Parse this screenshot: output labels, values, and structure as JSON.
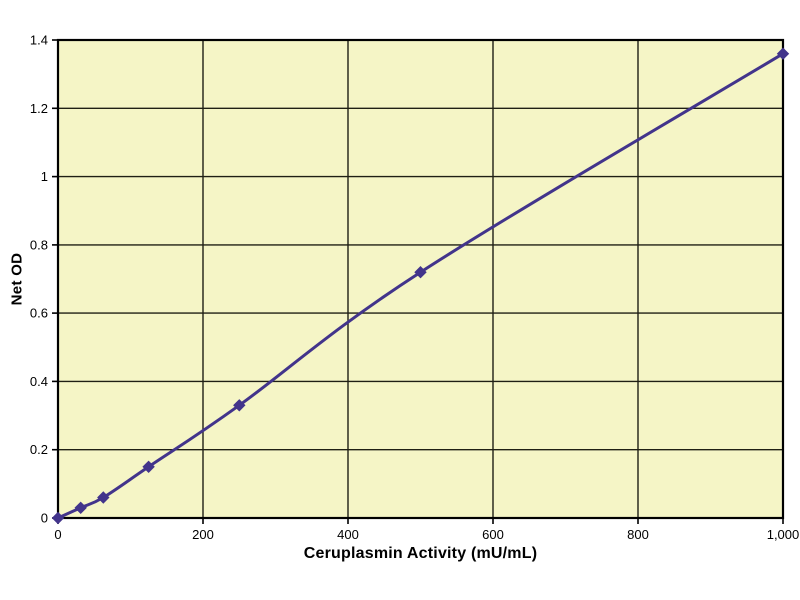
{
  "chart_data": {
    "type": "line",
    "title": "",
    "xlabel": "Ceruplasmin Activity (mU/mL)",
    "ylabel": "Net OD",
    "x": [
      0,
      31.25,
      62.5,
      125,
      250,
      500,
      1000
    ],
    "y": [
      0,
      0.03,
      0.06,
      0.15,
      0.33,
      0.72,
      1.36
    ],
    "xlim": [
      0,
      1000
    ],
    "ylim": [
      0,
      1.4
    ],
    "x_ticks": [
      0,
      200,
      400,
      600,
      800,
      1000
    ],
    "x_tick_labels": [
      "0",
      "200",
      "400",
      "600",
      "800",
      "1,000"
    ],
    "y_ticks": [
      0,
      0.2,
      0.4,
      0.6,
      0.8,
      1,
      1.2,
      1.4
    ],
    "y_tick_labels": [
      "0",
      "0.2",
      "0.4",
      "0.6",
      "0.8",
      "1",
      "1.2",
      "1.4"
    ],
    "grid": true,
    "legend": "none",
    "marker": "diamond",
    "smooth": true,
    "colors": {
      "line": "#42348B",
      "marker": "#42348B",
      "plot_bg": "#F5F5C6",
      "grid": "#1F1F14",
      "axis": "#000000",
      "text": "#000000",
      "page_bg": "#FFFFFF"
    }
  }
}
